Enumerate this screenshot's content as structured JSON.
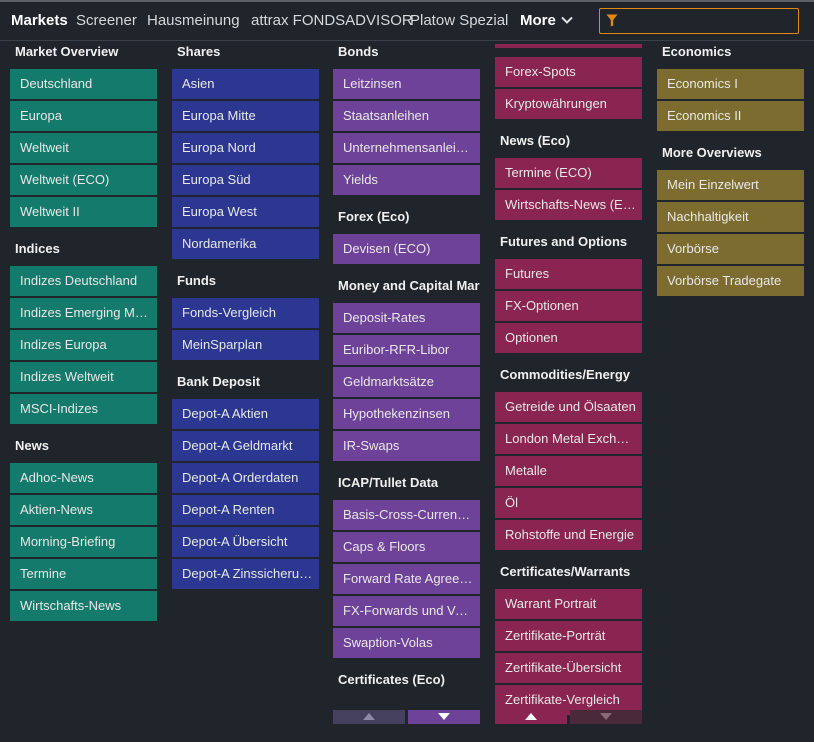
{
  "nav": {
    "markets": "Markets",
    "screener": "Screener",
    "hausmeinung": "Hausmeinung",
    "fondsadvisor": "attrax FONDSADVISOR",
    "platow": "Platow Spezial",
    "more": "More"
  },
  "filter": {
    "value": "",
    "icon": "filter-icon"
  },
  "colors": {
    "teal": "#147a6b",
    "blue": "#2b3790",
    "purple": "#6f4299",
    "crimson": "#8a2450",
    "olive": "#7d6c30",
    "accent": "#e08a12"
  },
  "columns": [
    {
      "color": "teal",
      "sections": [
        {
          "title": "Market Overview",
          "items": [
            "Deutschland",
            "Europa",
            "Weltweit",
            "Weltweit (ECO)",
            "Weltweit II"
          ]
        },
        {
          "title": "Indices",
          "items": [
            "Indizes Deutschland",
            "Indizes Emerging Markets",
            "Indizes Europa",
            "Indizes Weltweit",
            "MSCI-Indizes"
          ]
        },
        {
          "title": "News",
          "items": [
            "Adhoc-News",
            "Aktien-News",
            "Morning-Briefing",
            "Termine",
            "Wirtschafts-News"
          ]
        }
      ]
    },
    {
      "color": "blue",
      "sections": [
        {
          "title": "Shares",
          "items": [
            "Asien",
            "Europa Mitte",
            "Europa Nord",
            "Europa Süd",
            "Europa West",
            "Nordamerika"
          ]
        },
        {
          "title": "Funds",
          "items": [
            "Fonds-Vergleich",
            "MeinSparplan"
          ]
        },
        {
          "title": "Bank Deposit",
          "items": [
            "Depot-A Aktien",
            "Depot-A Geldmarkt",
            "Depot-A Orderdaten",
            "Depot-A Renten",
            "Depot-A Übersicht",
            "Depot-A Zinssicherung"
          ]
        }
      ]
    },
    {
      "color": "purple",
      "sections": [
        {
          "title": "Bonds",
          "items": [
            "Leitzinsen",
            "Staatsanleihen",
            "Unternehmensanleihen",
            "Yields"
          ]
        },
        {
          "title": "Forex (Eco)",
          "items": [
            "Devisen (ECO)"
          ]
        },
        {
          "title": "Money and Capital Markets",
          "items": [
            "Deposit-Rates",
            "Euribor-RFR-Libor",
            "Geldmarktsätze",
            "Hypothekenzinsen",
            "IR-Swaps"
          ]
        },
        {
          "title": "ICAP/Tullet Data",
          "items": [
            "Basis-Cross-Currency-Swaps",
            "Caps & Floors",
            "Forward Rate Agreements",
            "FX-Forwards und Volas",
            "Swaption-Volas"
          ]
        },
        {
          "title": "Certificates (Eco)",
          "items": []
        }
      ]
    },
    {
      "color": "crimson",
      "stub": true,
      "sections": [
        {
          "title": "",
          "items": [
            "Forex-Spots",
            "Kryptowährungen"
          ]
        },
        {
          "title": "News (Eco)",
          "items": [
            "Termine (ECO)",
            "Wirtschafts-News (ECO)"
          ]
        },
        {
          "title": "Futures and Options",
          "items": [
            "Futures",
            "FX-Optionen",
            "Optionen"
          ]
        },
        {
          "title": "Commodities/Energy",
          "items": [
            "Getreide und Ölsaaten",
            "London Metal Exchange",
            "Metalle",
            "Öl",
            "Rohstoffe und Energie"
          ]
        },
        {
          "title": "Certificates/Warrants",
          "items": [
            "Warrant Portrait",
            "Zertifikate-Porträt",
            "Zertifikate-Übersicht",
            "Zertifikate-Vergleich"
          ]
        }
      ]
    },
    {
      "color": "olive",
      "sections": [
        {
          "title": "Economics",
          "items": [
            "Economics I",
            "Economics II"
          ]
        },
        {
          "title": "More Overviews",
          "items": [
            "Mein Einzelwert",
            "Nachhaltigkeit",
            "Vorbörse",
            "Vorbörse Tradegate"
          ]
        }
      ]
    }
  ],
  "scroll_buttons": [
    {
      "icon": "arrow-up-icon",
      "column": 3,
      "enabled": false
    },
    {
      "icon": "arrow-down-icon",
      "column": 3,
      "enabled": true
    },
    {
      "icon": "arrow-up-icon",
      "column": 4,
      "enabled": true
    },
    {
      "icon": "arrow-down-icon",
      "column": 4,
      "enabled": false
    }
  ]
}
